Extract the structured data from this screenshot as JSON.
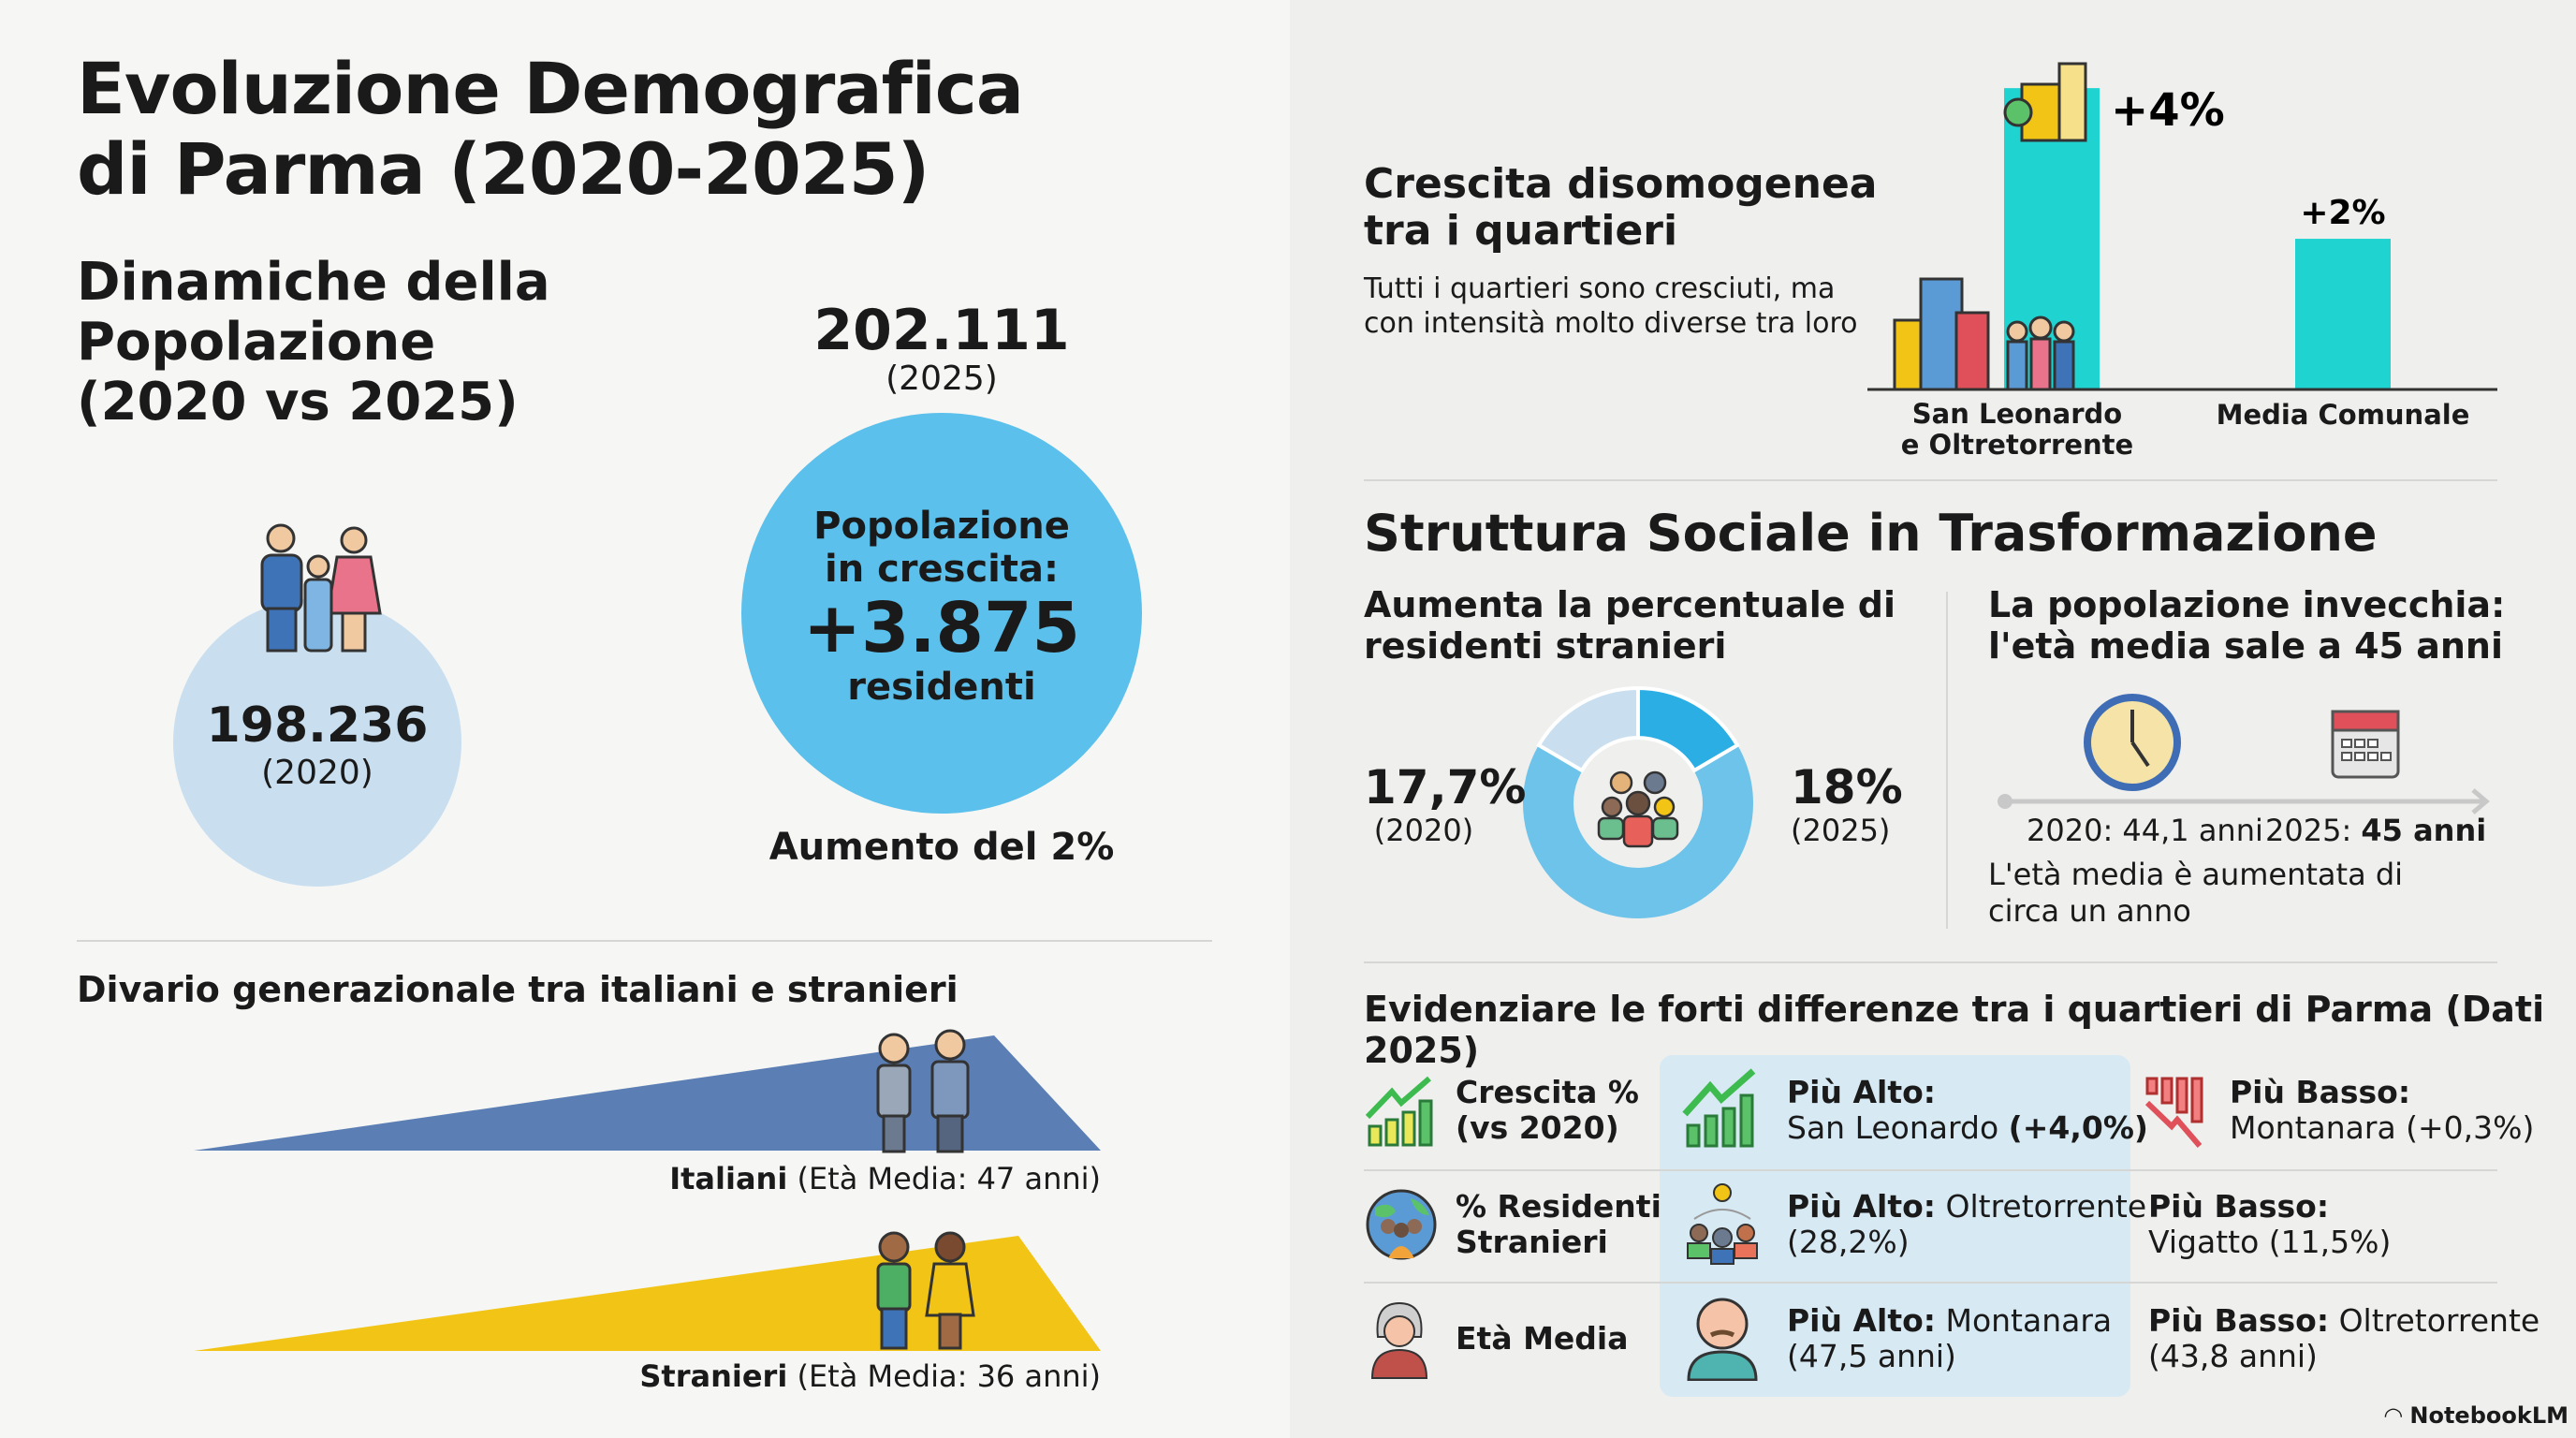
{
  "title": {
    "line1": "Evoluzione Demografica",
    "line2": "di Parma (2020-2025)"
  },
  "dynamics": {
    "heading1": "Dinamiche della",
    "heading2": "Popolazione",
    "heading3": "(2020 vs 2025)",
    "pop2020": "198.236",
    "year2020": "(2020)",
    "pop2025": "202.111",
    "year2025": "(2025)",
    "growth_l1": "Popolazione",
    "growth_l2": "in crescita:",
    "growth_value": "+3.875",
    "growth_l3": "residenti",
    "increase": "Aumento del 2%"
  },
  "gap": {
    "heading": "Divario generazionale tra italiani e stranieri",
    "italiani_label": "Italiani",
    "italiani_detail": "(Età Media: 47 anni)",
    "stranieri_label": "Stranieri",
    "stranieri_detail": "(Età Media: 36 anni)"
  },
  "districts": {
    "heading1": "Crescita disomogenea",
    "heading2": "tra i quartieri",
    "desc1": "Tutti i quartieri sono cresciuti, ma",
    "desc2": "con intensità molto diverse tra loro",
    "chart_data": {
      "type": "bar",
      "categories": [
        "San Leonardo e Oltretorrente",
        "Media Comunale"
      ],
      "values": [
        4,
        2
      ],
      "value_labels": [
        "+4%",
        "+2%"
      ],
      "ylim": [
        0,
        4.3
      ]
    },
    "label1a": "San Leonardo",
    "label1b": "e Oltretorrente",
    "label2": "Media Comunale"
  },
  "social": {
    "heading": "Struttura Sociale in Trasformazione",
    "foreign_h1": "Aumenta la percentuale di",
    "foreign_h2": "residenti stranieri",
    "pct2020": "17,7%",
    "y2020": "(2020)",
    "pct2025": "18%",
    "y2025": "(2025)",
    "age_h1": "La popolazione invecchia:",
    "age_h2": "l'età media sale a 45 anni",
    "age2020": "2020: 44,1 anni",
    "age2025_prefix": "2025:",
    "age2025_value": "45 anni",
    "age_note1": "L'età media è aumentata di",
    "age_note2": "circa un anno"
  },
  "table": {
    "heading": "Evidenziare le forti differenze tra i quartieri di Parma (Dati 2025)",
    "rows": [
      {
        "metric1": "Crescita %",
        "metric2": "(vs 2020)",
        "high_label": "Più Alto:",
        "high_value": "San Leonardo",
        "high_extra": "(+4,0%)",
        "low_label": "Più Basso:",
        "low_value": "Montanara (+0,3%)"
      },
      {
        "metric1": "% Residenti",
        "metric2": "Stranieri",
        "high_label": "Più Alto:",
        "high_value": "Oltretorrente",
        "high_extra": "(28,2%)",
        "low_label": "Più Basso:",
        "low_value": "Vigatto (11,5%)"
      },
      {
        "metric1": "Età Media",
        "metric2": "",
        "high_label": "Più Alto:",
        "high_value": "Montanara",
        "high_extra": "(47,5 anni)",
        "low_label": "Più Basso:",
        "low_value": "Oltretorrente",
        "low_extra": "(43,8 anni)"
      }
    ]
  },
  "brand": "NotebookLM",
  "colors": {
    "light_circle": "#c9dff0",
    "big_circle": "#5bc0eb",
    "italiani": "#5b7fb5",
    "stranieri": "#f2c416",
    "bar": "#1fd3d0",
    "highlight": "#d7e9f3"
  }
}
